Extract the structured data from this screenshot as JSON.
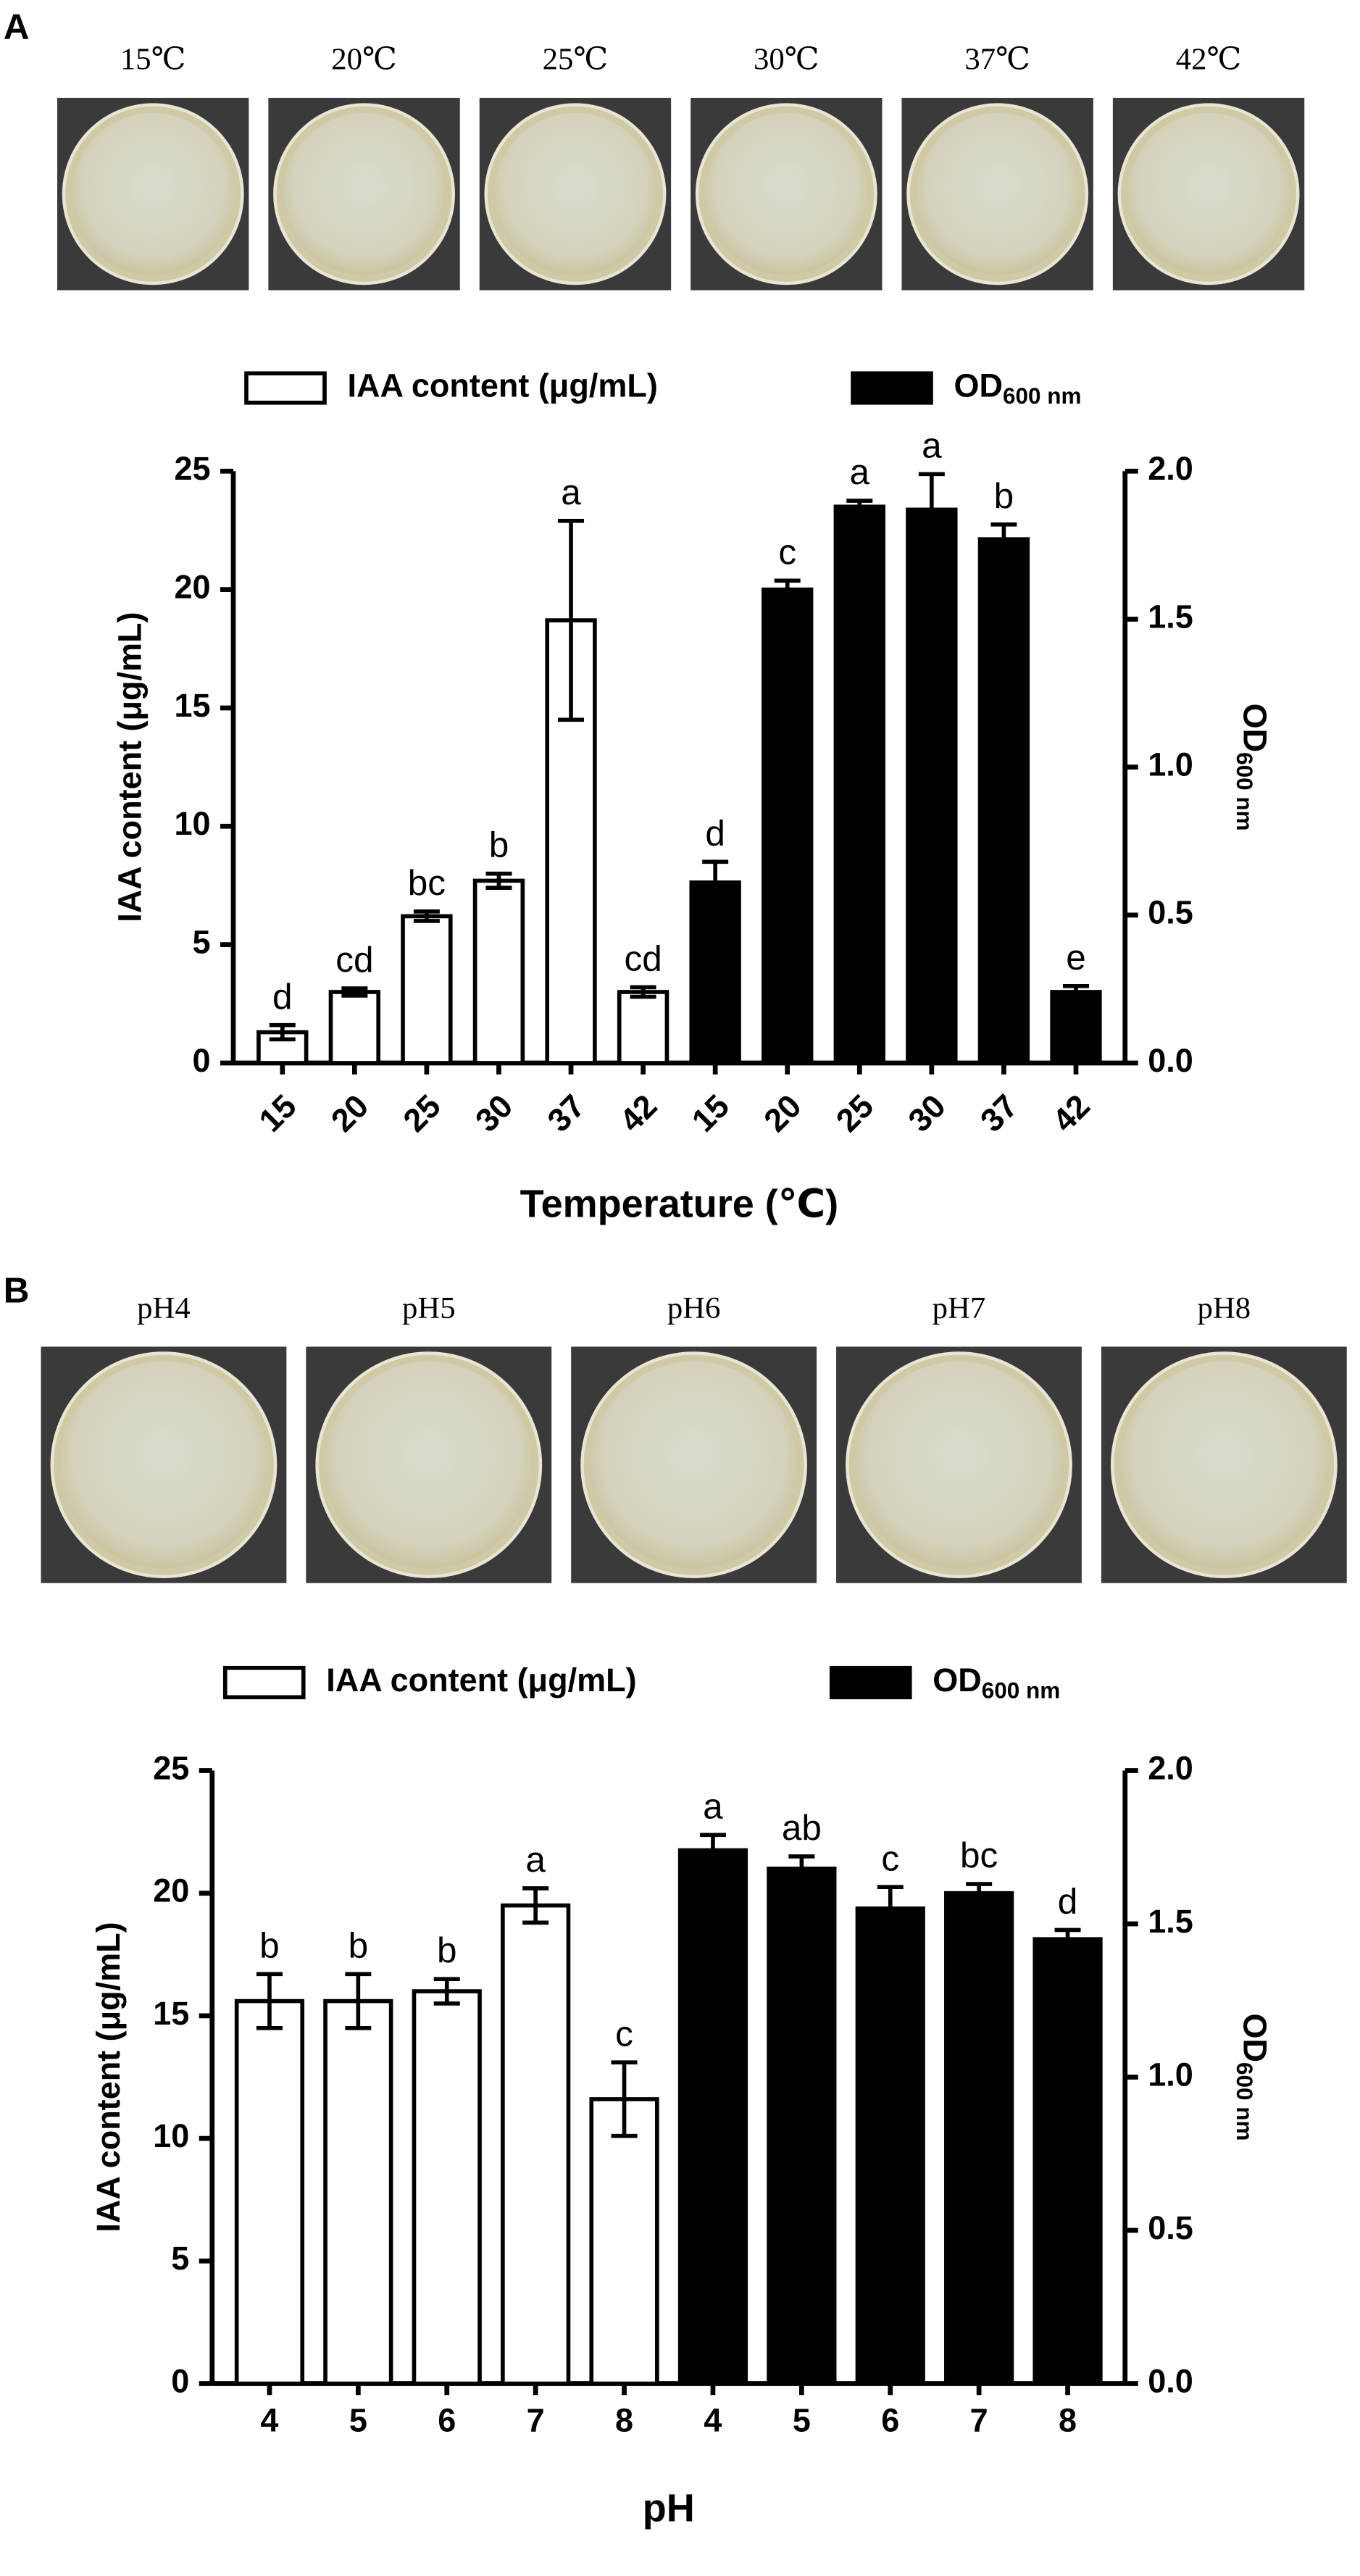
{
  "chart_data": [
    {
      "type": "bar",
      "panel": "A",
      "photo_labels": [
        "15℃",
        "20℃",
        "25℃",
        "30℃",
        "37℃",
        "42℃"
      ],
      "x_label": "Temperature (℃)",
      "y_label": "IAA content (μg/mL)",
      "y2_label": "OD",
      "y2_label_sub": "600 nm",
      "categories": [
        "15",
        "20",
        "25",
        "30",
        "37",
        "42",
        "15",
        "20",
        "25",
        "30",
        "37",
        "42"
      ],
      "series": [
        {
          "name": "IAA content (μg/mL)",
          "color": "#ffffff",
          "axis": "y",
          "values": [
            1.3,
            3.0,
            6.2,
            7.7,
            18.7,
            3.0,
            null,
            null,
            null,
            null,
            null,
            null
          ],
          "errors": [
            0.3,
            0.15,
            0.2,
            0.3,
            4.2,
            0.2,
            null,
            null,
            null,
            null,
            null,
            null
          ]
        },
        {
          "name": "OD",
          "name_sub": "600 nm",
          "color": "#000000",
          "axis": "y2",
          "values": [
            null,
            null,
            null,
            null,
            null,
            null,
            0.61,
            1.6,
            1.88,
            1.87,
            1.77,
            0.24
          ],
          "errors": [
            null,
            null,
            null,
            null,
            null,
            null,
            0.07,
            0.03,
            0.02,
            0.12,
            0.05,
            0.02
          ]
        }
      ],
      "annotations": [
        "d",
        "cd",
        "bc",
        "b",
        "a",
        "cd",
        "d",
        "c",
        "a",
        "a",
        "b",
        "e"
      ],
      "ylim": [
        0,
        25
      ],
      "yticks": [
        0,
        5,
        10,
        15,
        20,
        25
      ],
      "y2lim": [
        0,
        2
      ],
      "y2ticks": [
        {
          "value": 0,
          "label": "0.0"
        },
        0.5,
        {
          "value": 1,
          "label": "1.0"
        },
        1.5,
        {
          "value": 2,
          "label": "2.0"
        }
      ],
      "rotate_x_labels": true
    },
    {
      "type": "bar",
      "panel": "B",
      "photo_labels": [
        "pH4",
        "pH5",
        "pH6",
        "pH7",
        "pH8"
      ],
      "x_label": "pH",
      "y_label": "IAA content (μg/mL)",
      "y2_label": "OD",
      "y2_label_sub": "600 nm",
      "categories": [
        "4",
        "5",
        "6",
        "7",
        "8",
        "4",
        "5",
        "6",
        "7",
        "8"
      ],
      "series": [
        {
          "name": "IAA content (μg/mL)",
          "color": "#ffffff",
          "axis": "y",
          "values": [
            15.6,
            15.6,
            16.0,
            19.5,
            11.6,
            null,
            null,
            null,
            null,
            null
          ],
          "errors": [
            1.1,
            1.1,
            0.5,
            0.7,
            1.5,
            null,
            null,
            null,
            null,
            null
          ]
        },
        {
          "name": "OD",
          "name_sub": "600 nm",
          "color": "#000000",
          "axis": "y2",
          "values": [
            null,
            null,
            null,
            null,
            null,
            1.74,
            1.68,
            1.55,
            1.6,
            1.45
          ],
          "errors": [
            null,
            null,
            null,
            null,
            null,
            0.05,
            0.04,
            0.07,
            0.03,
            0.03
          ]
        }
      ],
      "annotations": [
        "b",
        "b",
        "b",
        "a",
        "c",
        "a",
        "ab",
        "c",
        "bc",
        "d"
      ],
      "ylim": [
        0,
        25
      ],
      "yticks": [
        0,
        5,
        10,
        15,
        20,
        25
      ],
      "y2lim": [
        0,
        2
      ],
      "y2ticks": [
        {
          "value": 0,
          "label": "0.0"
        },
        0.5,
        {
          "value": 1,
          "label": "1.0"
        },
        1.5,
        {
          "value": 2,
          "label": "2.0"
        }
      ],
      "rotate_x_labels": false
    }
  ]
}
